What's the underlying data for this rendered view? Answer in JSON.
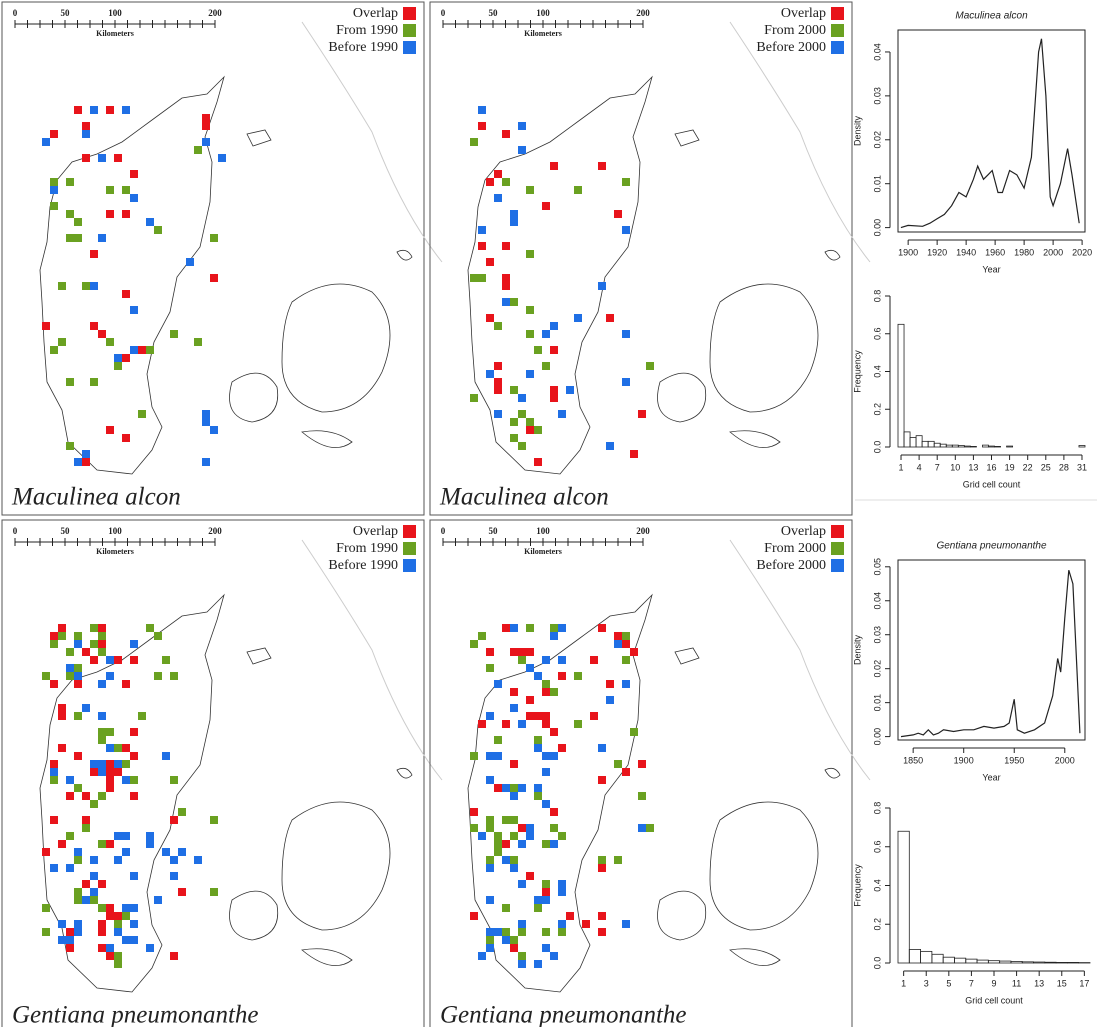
{
  "maps": [
    {
      "scale": [
        "0",
        "50",
        "100",
        "200"
      ],
      "scale_unit": "Kilometers",
      "legend": [
        {
          "label": "Overlap",
          "color": "#e8141b"
        },
        {
          "label": "From 1990",
          "color": "#6aa121"
        },
        {
          "label": "Before 1990",
          "color": "#1f6fe5"
        }
      ],
      "species": "Maculinea alcon"
    },
    {
      "scale": [
        "0",
        "50",
        "100",
        "200"
      ],
      "scale_unit": "Kilometers",
      "legend": [
        {
          "label": "Overlap",
          "color": "#e8141b"
        },
        {
          "label": "From 2000",
          "color": "#6aa121"
        },
        {
          "label": "Before 2000",
          "color": "#1f6fe5"
        }
      ],
      "species": "Maculinea alcon"
    },
    {
      "scale": [
        "0",
        "50",
        "100",
        "200"
      ],
      "scale_unit": "Kilometers",
      "legend": [
        {
          "label": "Overlap",
          "color": "#e8141b"
        },
        {
          "label": "From 1990",
          "color": "#6aa121"
        },
        {
          "label": "Before 1990",
          "color": "#1f6fe5"
        }
      ],
      "species": "Gentiana pneumonanthe"
    },
    {
      "scale": [
        "0",
        "50",
        "100",
        "200"
      ],
      "scale_unit": "Kilometers",
      "legend": [
        {
          "label": "Overlap",
          "color": "#e8141b"
        },
        {
          "label": "From 2000",
          "color": "#6aa121"
        },
        {
          "label": "Before 2000",
          "color": "#1f6fe5"
        }
      ],
      "species": "Gentiana pneumonanthe"
    }
  ],
  "chart_data": [
    {
      "type": "line",
      "title": "Maculinea alcon",
      "x_label": "Year",
      "y_label": "Density",
      "color": "#222222",
      "x": [
        1895,
        1900,
        1910,
        1915,
        1920,
        1925,
        1930,
        1935,
        1940,
        1945,
        1948,
        1952,
        1955,
        1958,
        1962,
        1965,
        1970,
        1975,
        1980,
        1985,
        1990,
        1992,
        1995,
        1998,
        2000,
        2005,
        2010,
        2013,
        2018
      ],
      "values": [
        0,
        0.0005,
        0.0003,
        0.001,
        0.002,
        0.003,
        0.005,
        0.008,
        0.007,
        0.011,
        0.014,
        0.011,
        0.012,
        0.013,
        0.008,
        0.008,
        0.013,
        0.012,
        0.009,
        0.016,
        0.04,
        0.043,
        0.03,
        0.007,
        0.005,
        0.01,
        0.018,
        0.012,
        0.001
      ],
      "xlim": [
        1893,
        2022
      ],
      "xticks": [
        1900,
        1920,
        1940,
        1960,
        1980,
        2000,
        2020
      ],
      "ylim": [
        -0.001,
        0.045
      ],
      "yticks": [
        {
          "value": 0,
          "label": "0.00"
        },
        0.01,
        0.02,
        0.03,
        0.04
      ]
    },
    {
      "type": "histogram",
      "x_label": "Grid cell count",
      "y_label": "Frequency",
      "color": "#222222",
      "bins": [
        0.5,
        1.5,
        2.5,
        3.5,
        4.5,
        5.5,
        6.5,
        7.5,
        8.5,
        9.5,
        10.5,
        11.5,
        12.5,
        13.5,
        14.5,
        15.5,
        16.5,
        17.5,
        18.5,
        19.5,
        20.5,
        21.5,
        22.5,
        23.5,
        24.5,
        25.5,
        26.5,
        27.5,
        28.5,
        29.5,
        30.5,
        31.5
      ],
      "values": [
        0.65,
        0.08,
        0.05,
        0.06,
        0.03,
        0.03,
        0.02,
        0.015,
        0.01,
        0.01,
        0.008,
        0.005,
        0.003,
        0,
        0.01,
        0.005,
        0.003,
        0,
        0.005,
        0,
        0,
        0,
        0,
        0,
        0,
        0,
        0,
        0,
        0,
        0,
        0.008
      ],
      "xlim": [
        0.5,
        31.5
      ],
      "xticks": [
        1,
        4,
        7,
        10,
        13,
        16,
        19,
        22,
        25,
        28,
        31
      ],
      "ylim": [
        0,
        0.8
      ],
      "yticks": [
        {
          "value": 0,
          "label": "0.0"
        },
        0.2,
        0.4,
        0.6,
        0.8
      ]
    },
    {
      "type": "line",
      "title": "Gentiana pneumonanthe",
      "x_label": "Year",
      "y_label": "Density",
      "color": "#222222",
      "x": [
        1838,
        1850,
        1855,
        1860,
        1865,
        1870,
        1875,
        1880,
        1890,
        1900,
        1910,
        1920,
        1930,
        1940,
        1945,
        1950,
        1953,
        1960,
        1970,
        1980,
        1988,
        1993,
        1996,
        2000,
        2004,
        2008,
        2012,
        2015
      ],
      "values": [
        0,
        0.0005,
        0.001,
        0.0005,
        0.002,
        0.0005,
        0.001,
        0.002,
        0.0015,
        0.002,
        0.002,
        0.003,
        0.0025,
        0.003,
        0.004,
        0.011,
        0.002,
        0.001,
        0.002,
        0.004,
        0.012,
        0.023,
        0.019,
        0.035,
        0.049,
        0.045,
        0.02,
        0.001
      ],
      "xlim": [
        1835,
        2020
      ],
      "xticks": [
        1850,
        1900,
        1950,
        2000
      ],
      "ylim": [
        -0.001,
        0.052
      ],
      "yticks": [
        {
          "value": 0,
          "label": "0.00"
        },
        0.01,
        0.02,
        0.03,
        0.04,
        0.05
      ]
    },
    {
      "type": "histogram",
      "x_label": "Grid cell count",
      "y_label": "Frequency",
      "color": "#222222",
      "bins": [
        0.5,
        1.5,
        2.5,
        3.5,
        4.5,
        5.5,
        6.5,
        7.5,
        8.5,
        9.5,
        10.5,
        11.5,
        12.5,
        13.5,
        14.5,
        15.5,
        16.5,
        17.5
      ],
      "values": [
        0.68,
        0.07,
        0.06,
        0.045,
        0.03,
        0.025,
        0.02,
        0.015,
        0.012,
        0.01,
        0.008,
        0.006,
        0.005,
        0.004,
        0.003,
        0.003,
        0.002
      ],
      "xlim": [
        0.5,
        17.5
      ],
      "xticks": [
        1,
        3,
        5,
        7,
        9,
        11,
        13,
        15,
        17
      ],
      "ylim": [
        0,
        0.8
      ],
      "yticks": [
        {
          "value": 0,
          "label": "0.0"
        },
        0.2,
        0.4,
        0.6,
        0.8
      ]
    }
  ]
}
